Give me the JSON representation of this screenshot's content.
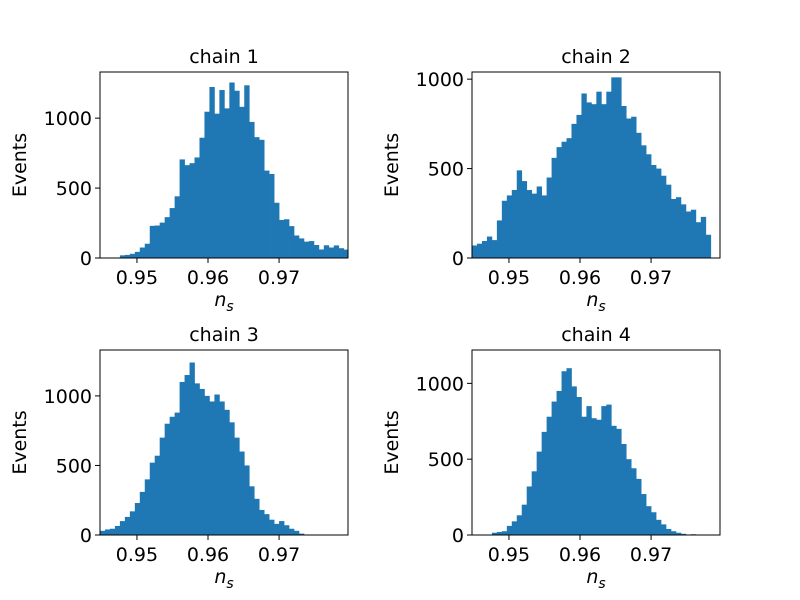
{
  "figure": {
    "bar_color": "#1f77b4",
    "xlim": [
      0.9448,
      0.9797
    ],
    "bin_width": 0.0007,
    "xticks": [
      0.95,
      0.96,
      0.97
    ],
    "xtick_labels": [
      "0.95",
      "0.96",
      "0.97"
    ]
  },
  "chart_data": [
    {
      "type": "bar",
      "title": "chain 1",
      "xlabel": "n",
      "xlabel_subscript": "s",
      "ylabel": "Events",
      "ylim": [
        0,
        1330
      ],
      "yticks": [
        0,
        500,
        1000
      ],
      "ytick_labels": [
        "0",
        "500",
        "1000"
      ],
      "bins_start": 0.9448,
      "values": [
        0,
        0,
        0,
        0,
        19,
        22,
        30,
        44,
        75,
        102,
        230,
        232,
        253,
        292,
        357,
        441,
        705,
        664,
        678,
        719,
        860,
        1046,
        1223,
        1032,
        1201,
        1070,
        1255,
        1196,
        1081,
        1235,
        973,
        864,
        845,
        625,
        601,
        395,
        272,
        277,
        228,
        161,
        140,
        117,
        121,
        93,
        61,
        91,
        75,
        90,
        70,
        60,
        28,
        40,
        28,
        0
      ]
    },
    {
      "type": "bar",
      "title": "chain 2",
      "xlabel": "n",
      "xlabel_subscript": "s",
      "ylabel": "Events",
      "ylim": [
        0,
        1040
      ],
      "yticks": [
        0,
        500,
        1000
      ],
      "ytick_labels": [
        "0",
        "500",
        "1000"
      ],
      "bins_start": 0.9448,
      "values": [
        70,
        80,
        95,
        120,
        100,
        210,
        320,
        350,
        380,
        490,
        430,
        380,
        360,
        400,
        350,
        450,
        560,
        620,
        650,
        670,
        750,
        800,
        920,
        870,
        860,
        930,
        860,
        930,
        1010,
        1010,
        850,
        780,
        790,
        700,
        630,
        580,
        520,
        500,
        460,
        410,
        330,
        340,
        300,
        260,
        270,
        200,
        230,
        130,
        0,
        0,
        0,
        0,
        0,
        0
      ]
    },
    {
      "type": "bar",
      "title": "chain 3",
      "xlabel": "n",
      "xlabel_subscript": "s",
      "ylabel": "Events",
      "ylim": [
        0,
        1330
      ],
      "yticks": [
        0,
        500,
        1000
      ],
      "ytick_labels": [
        "0",
        "500",
        "1000"
      ],
      "bins_start": 0.9448,
      "values": [
        30,
        40,
        45,
        65,
        100,
        130,
        170,
        230,
        310,
        400,
        520,
        570,
        700,
        800,
        850,
        880,
        1100,
        1150,
        1240,
        1090,
        1050,
        1000,
        960,
        1010,
        960,
        900,
        810,
        700,
        600,
        500,
        350,
        260,
        180,
        150,
        110,
        80,
        100,
        70,
        45,
        30,
        10,
        0,
        0,
        0,
        0,
        0,
        0,
        0,
        0,
        0,
        0,
        0,
        0,
        0
      ]
    },
    {
      "type": "bar",
      "title": "chain 4",
      "xlabel": "n",
      "xlabel_subscript": "s",
      "ylabel": "Events",
      "ylim": [
        0,
        1220
      ],
      "yticks": [
        0,
        500,
        1000
      ],
      "ytick_labels": [
        "0",
        "500",
        "1000"
      ],
      "bins_start": 0.9448,
      "values": [
        0,
        0,
        0,
        0,
        15,
        20,
        25,
        60,
        90,
        130,
        200,
        320,
        420,
        550,
        680,
        780,
        880,
        950,
        1080,
        1100,
        980,
        910,
        780,
        850,
        770,
        760,
        850,
        860,
        720,
        700,
        600,
        500,
        440,
        370,
        270,
        190,
        150,
        100,
        70,
        40,
        25,
        15,
        8,
        0,
        5,
        0,
        0,
        0,
        0,
        0,
        0,
        0,
        0,
        0
      ]
    }
  ]
}
